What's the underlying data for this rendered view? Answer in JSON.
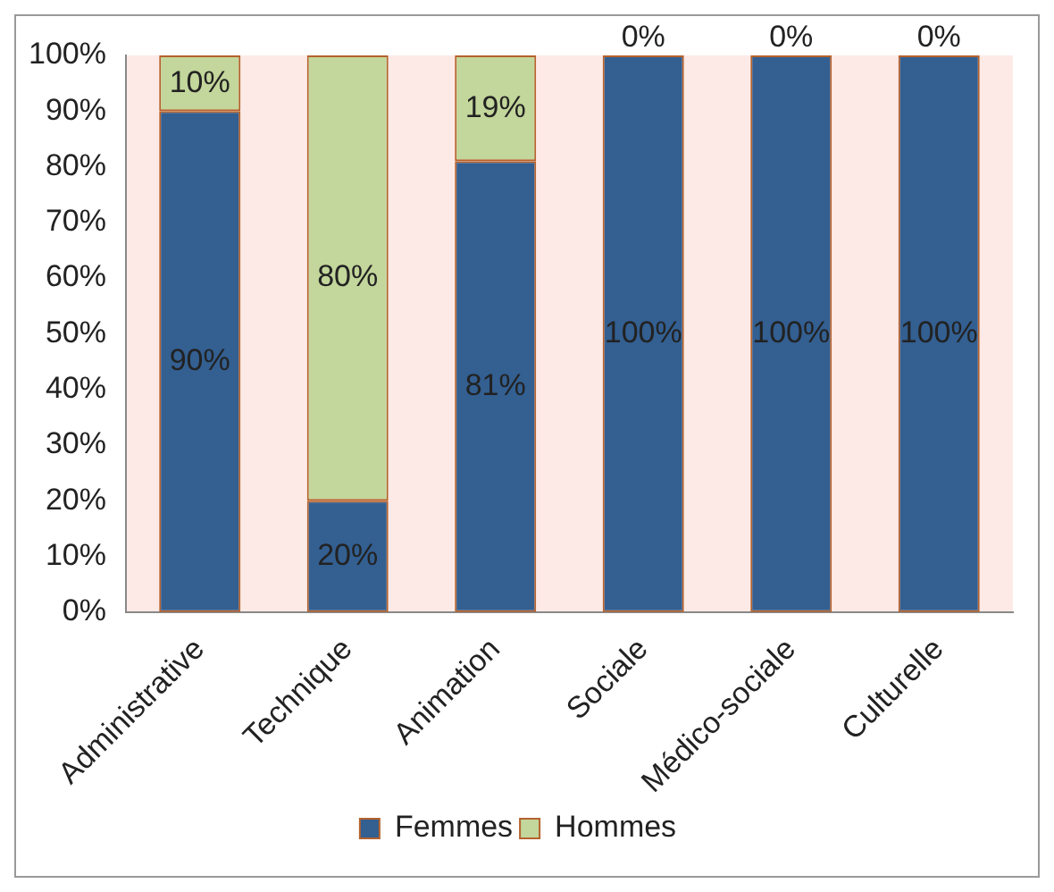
{
  "chart_data": {
    "type": "bar",
    "stacked": true,
    "categories": [
      "Administrative",
      "Technique",
      "Animation",
      "Sociale",
      "Médico-sociale",
      "Culturelle"
    ],
    "series": [
      {
        "name": "Femmes",
        "color": "#335f91",
        "values": [
          90,
          20,
          81,
          100,
          100,
          100
        ],
        "value_labels": [
          "90%",
          "20%",
          "81%",
          "100%",
          "100%",
          "100%"
        ]
      },
      {
        "name": "Hommes",
        "color": "#c3d69b",
        "values": [
          10,
          80,
          19,
          0,
          0,
          0
        ],
        "value_labels": [
          "10%",
          "80%",
          "19%",
          "0%",
          "0%",
          "0%"
        ]
      }
    ],
    "ylim": [
      0,
      100
    ],
    "yticks": [
      {
        "value": 0,
        "label": "0%"
      },
      {
        "value": 10,
        "label": "10%"
      },
      {
        "value": 20,
        "label": "20%"
      },
      {
        "value": 30,
        "label": "30%"
      },
      {
        "value": 40,
        "label": "40%"
      },
      {
        "value": 50,
        "label": "50%"
      },
      {
        "value": 60,
        "label": "60%"
      },
      {
        "value": 70,
        "label": "70%"
      },
      {
        "value": 80,
        "label": "80%"
      },
      {
        "value": 90,
        "label": "90%"
      },
      {
        "value": 100,
        "label": "100%"
      }
    ],
    "grid": false,
    "legend": "bottom"
  }
}
